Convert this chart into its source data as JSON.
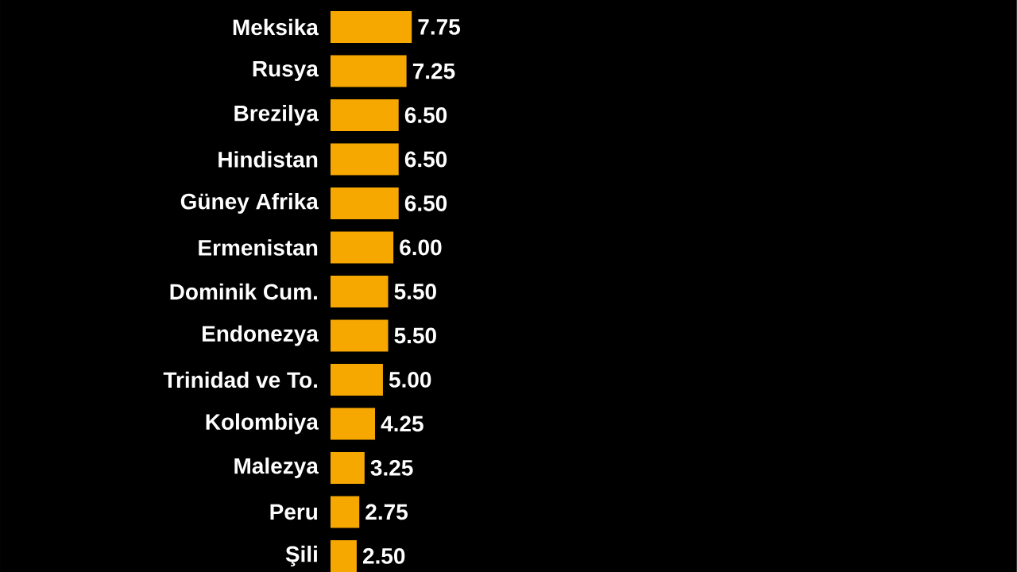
{
  "chart_data": {
    "type": "bar",
    "orientation": "horizontal",
    "categories": [
      "Meksika",
      "Rusya",
      "Brezilya",
      "Hindistan",
      "Güney Afrika",
      "Ermenistan",
      "Dominik Cum.",
      "Endonezya",
      "Trinidad ve To.",
      "Kolombiya",
      "Malezya",
      "Peru",
      "Şili"
    ],
    "values": [
      7.75,
      7.25,
      6.5,
      6.5,
      6.5,
      6.0,
      5.5,
      5.5,
      5.0,
      4.25,
      3.25,
      2.75,
      2.5
    ],
    "value_labels": [
      "7.75",
      "7.25",
      "6.50",
      "6.50",
      "6.50",
      "6.00",
      "5.50",
      "5.50",
      "5.00",
      "4.25",
      "3.25",
      "2.75",
      "2.50"
    ],
    "color": "#f7a800"
  }
}
